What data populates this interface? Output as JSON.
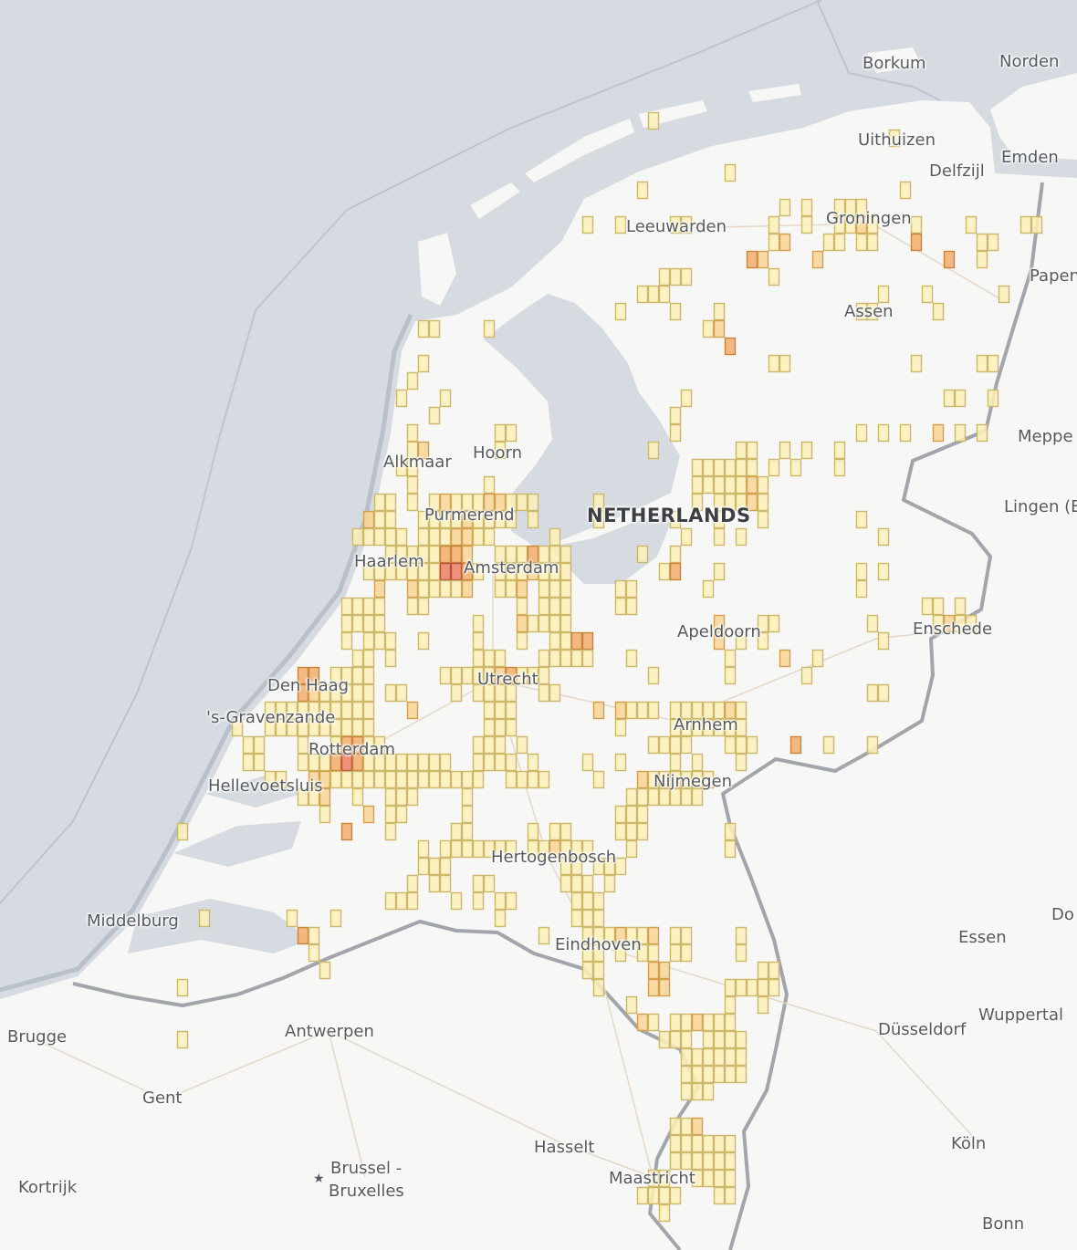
{
  "map": {
    "country_label": "NETHERLANDS",
    "colors": {
      "sea": "#d6dbe2",
      "land": "#f7f7f5",
      "border": "#9a9ea4",
      "level_fill": [
        "#fdf0b8",
        "#f9d595",
        "#f3ae6c",
        "#ec7f64"
      ],
      "level_stroke": [
        "#cdb768",
        "#d39f4d",
        "#c9843a",
        "#b8503a"
      ]
    },
    "places": {
      "borkum": "Borkum",
      "norden": "Norden",
      "uithuizen": "Uithuizen",
      "emden": "Emden",
      "delfzijl": "Delfzijl",
      "leeuwarden": "Leeuwarden",
      "groningen": "Groningen",
      "papenburg": "Papen",
      "assen": "Assen",
      "meppel": "Meppe",
      "alkmaar": "Alkmaar",
      "hoorn": "Hoorn",
      "purmerend": "Purmerend",
      "lingen": "Lingen (E",
      "haarlem": "Haarlem",
      "amsterdam": "Amsterdam",
      "apeldoorn": "Apeldoorn",
      "enschede": "Enschede",
      "den_haag": "Den Haag",
      "utrecht": "Utrecht",
      "s_gravenzande": "'s-Gravenzande",
      "arnhem": "Arnhem",
      "rotterdam": "Rotterdam",
      "hellevoetsluis": "Hellevoetsluis",
      "nijmegen": "Nijmegen",
      "hertogenbosch": "Hertogenbosch",
      "middelburg": "Middelburg",
      "dortmund": "Do",
      "essen": "Essen",
      "eindhoven": "Eindhoven",
      "brugge": "Brugge",
      "antwerpen": "Antwerpen",
      "wuppertal": "Wuppertal",
      "dusseldorf": "Düsseldorf",
      "gent": "Gent",
      "hasselt": "Hasselt",
      "koln": "Köln",
      "brussel": "Brussel -",
      "bruxelles": "Bruxelles",
      "kortrijk": "Kortrijk",
      "maastricht": "Maastricht",
      "bonn": "Bonn"
    },
    "grid_cells": [
      {
        "r": 6,
        "c": "59"
      },
      {
        "r": 7,
        "c": "81"
      },
      {
        "r": 9,
        "c": "66"
      },
      {
        "r": 10,
        "c": "58,82"
      },
      {
        "r": 11,
        "c": "71,73,76-78"
      },
      {
        "r": 12,
        "c": "53,56,61-62,70,73,76-77,78:1,79,83,88,93-94"
      },
      {
        "r": 13,
        "c": "70,71:1,75-76,78-79,83:2,89-90"
      },
      {
        "r": 14,
        "c": "68:2,69:1,74:1,86:2,89"
      },
      {
        "r": 15,
        "c": "60-62,70"
      },
      {
        "r": 16,
        "c": "58-60,80,84,91"
      },
      {
        "r": 17,
        "c": "56,61,65,78-79,85"
      },
      {
        "r": 18,
        "c": "38-39,44,64,65:1"
      },
      {
        "r": 19,
        "c": "66:2"
      },
      {
        "r": 20,
        "c": "38,70-71,83,89-90"
      },
      {
        "r": 21,
        "c": "37"
      },
      {
        "r": 22,
        "c": "36,40,62,86-87,90"
      },
      {
        "r": 23,
        "c": "39,61"
      },
      {
        "r": 24,
        "c": "37,45-46,61,78,80,82,85:1,87,89"
      },
      {
        "r": 25,
        "c": "37,38:1,45,59,67-68,71,73,76"
      },
      {
        "r": 26,
        "c": "36-37,63-68,70,72,76"
      },
      {
        "r": 27,
        "c": "37,44,63-67,68:1,69"
      },
      {
        "r": 28,
        "c": "34-35,37,39,40:1,41-43,44:1,45:1,46-48,54,63,65-67,68:1,69"
      },
      {
        "r": 29,
        "c": "33:1,34-35,38-41,42:1,43-46,48,54,61,65,69,78"
      },
      {
        "r": 30,
        "c": "32-36,38-40,41:1,42:1,43-44,50,62,65,67,80"
      },
      {
        "r": 31,
        "c": "35-37,38-39,40:2,41:2,42:1,45,46-47,48:2,49-51,58,61"
      },
      {
        "r": 32,
        "c": "33-39,40:3,41:3,42:2,43,45-47,48:1,49-51,60,61:2,65,78,80"
      },
      {
        "r": 33,
        "c": "34:1,37:1,38-41,42:1,45-46,47:1,49-51,56-57,64,78"
      },
      {
        "r": 34,
        "c": "31-34,37-38,47,49-51,56-57,84-85,87"
      },
      {
        "r": 35,
        "c": "31-34,43,47:1,48-51,65:1,69-70,79,85,86:1,87-88"
      },
      {
        "r": 36,
        "c": "31,33-35,38,43,47,50-51,52:2,53:2,65:1,67,69,80"
      },
      {
        "r": 37,
        "c": "32-33,35,43-45,49-53,57,66,71:1,74"
      },
      {
        "r": 38,
        "c": "27:2,28:2,30-33,40-44,45:1,46:2,47-49,59,66,73"
      },
      {
        "r": 39,
        "c": "27:2,28:1,29-33,35-36,41,43-46,49-50,79-80"
      },
      {
        "r": 40,
        "c": "24-33,37:1,44-46,54:1,56:1,57-59,61-64,65,66:1,67"
      },
      {
        "r": 41,
        "c": "21,24-33,44-46,56,61-67"
      },
      {
        "r": 42,
        "c": "22-23,27,30,31:2,32:2,33-34,43-45,47,59-62,66-68,72:2,75,79"
      },
      {
        "r": 43,
        "c": "22-23,27-29,30:2,31:3,32:2,33-40,43-46,48,53,56,61,63,67"
      },
      {
        "r": 44,
        "c": "24-25,28:1,29:1,30-43,46-49,54,58:1,59-64"
      },
      {
        "r": 45,
        "c": "27-28,29:1,32,35-37,42,57-63"
      },
      {
        "r": 46,
        "c": "29,33:1,35-36,42,56-58"
      },
      {
        "r": 47,
        "c": "16,31:2,35,41-42,48,50-51,56-58,66"
      },
      {
        "r": 48,
        "c": "38,40-46,48-49,50:1,51-53,57,66"
      },
      {
        "r": 49,
        "c": "38-40,51-52,54-56"
      },
      {
        "r": 50,
        "c": "37,39-40,43-44,51-53,55"
      },
      {
        "r": 51,
        "c": "35-37,41,43,45-46,52-54"
      },
      {
        "r": 52,
        "c": "18,26,30,45,52-54"
      },
      {
        "r": 53,
        "c": "27:2,28,49,53-55,56:1,57-58,59:1,61-62,67"
      },
      {
        "r": 54,
        "c": "28,53-54,56,58-59,61-62,67"
      },
      {
        "r": 55,
        "c": "29,53-54,59:1,60:1,69-70"
      },
      {
        "r": 56,
        "c": "16,54,59:1,60:1,66-70"
      },
      {
        "r": 57,
        "c": "57,66,69"
      },
      {
        "r": 58,
        "c": "58:1,59,61-62,63:1,64-66"
      },
      {
        "r": 59,
        "c": "16,60-62,64-67"
      },
      {
        "r": 60,
        "c": "62-67"
      },
      {
        "r": 61,
        "c": "62-67"
      },
      {
        "r": 62,
        "c": "62-64"
      },
      {
        "r": 64,
        "c": "61-62,63:1"
      },
      {
        "r": 65,
        "c": "61-66"
      },
      {
        "r": 66,
        "c": "61-66"
      },
      {
        "r": 67,
        "c": "59-60,63-66"
      },
      {
        "r": 68,
        "c": "58-61,65-66"
      },
      {
        "r": 69,
        "c": "60"
      }
    ]
  }
}
